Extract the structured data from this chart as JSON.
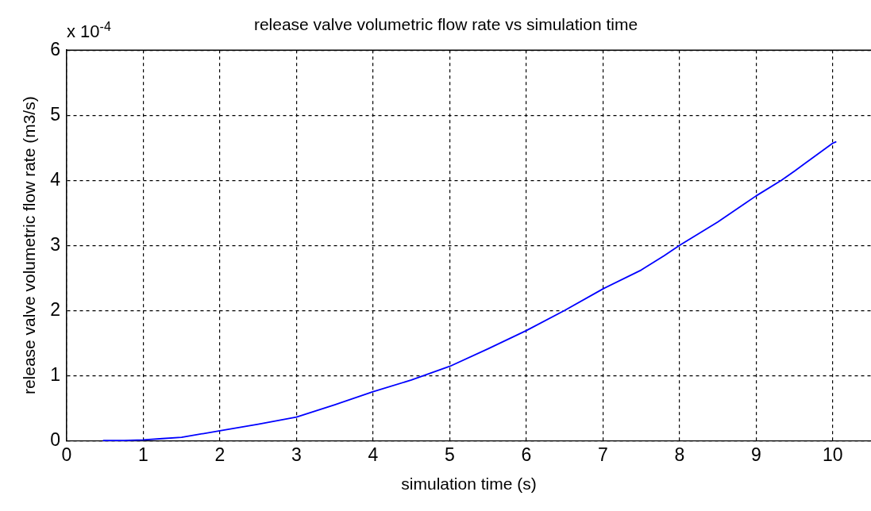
{
  "chart_data": {
    "type": "line",
    "title": "release valve volumetric flow rate vs simulation time",
    "xlabel": "simulation time (s)",
    "ylabel": "release valve volumetric flow rate (m3/s)",
    "annotations": [
      "x 10$^{-4}$"
    ],
    "x": [
      0.48,
      0.75,
      1,
      1.25,
      1.5,
      2,
      2.5,
      3,
      3.5,
      4,
      4.5,
      5,
      5.5,
      6,
      6.5,
      7,
      7.5,
      7.8,
      8,
      8.5,
      9,
      9.33,
      9.5,
      10,
      10.04
    ],
    "series": [
      {
        "color": "#0000ff",
        "values": [
          0,
          0,
          0.01,
          0.03,
          0.05,
          0.15,
          0.25,
          0.36,
          0.55,
          0.75,
          0.93,
          1.14,
          1.41,
          1.69,
          2.0,
          2.33,
          2.62,
          2.84,
          3.0,
          3.36,
          3.76,
          4.0,
          4.14,
          4.57,
          4.59
        ]
      }
    ],
    "xlim": [
      0,
      10.5
    ],
    "ylim": [
      0,
      6
    ],
    "xticks": [
      0,
      1,
      2,
      3,
      4,
      5,
      6,
      7,
      8,
      9,
      10
    ],
    "yticks": [
      0,
      1,
      2,
      3,
      4,
      5,
      6
    ],
    "grid": true,
    "legend": false,
    "marker": "none",
    "line_style": "solid"
  }
}
